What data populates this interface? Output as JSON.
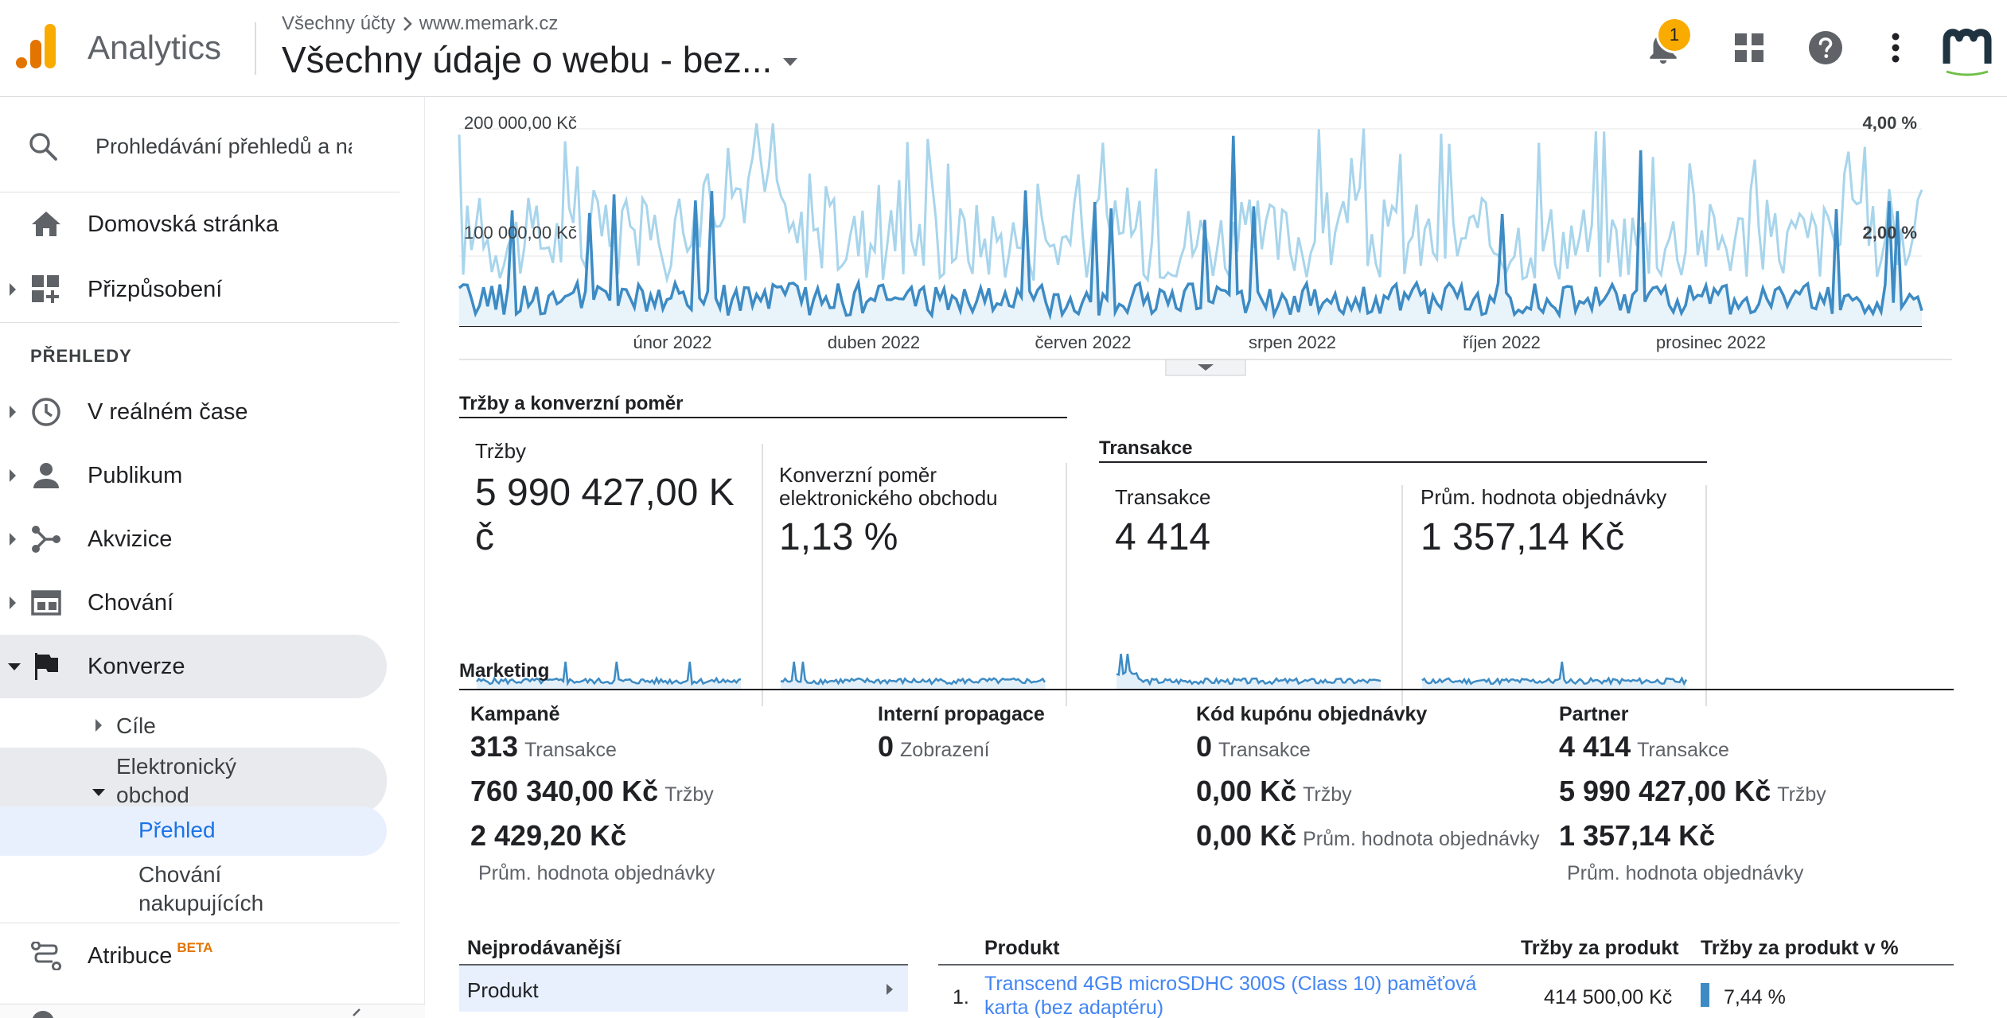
{
  "header": {
    "app_name": "Analytics",
    "breadcrumb_account": "Všechny účty",
    "breadcrumb_property": "www.memark.cz",
    "view_title": "Všechny údaje o webu - bez...",
    "notification_count": "1"
  },
  "sidebar": {
    "search_placeholder": "Prohledávání přehledů a náp",
    "home": "Domovská stránka",
    "customize": "Přizpůsobení",
    "section_reports": "PŘEHLEDY",
    "realtime": "V reálném čase",
    "audience": "Publikum",
    "acquisition": "Akvizice",
    "behavior": "Chování",
    "conversions": "Konverze",
    "goals": "Cíle",
    "ecommerce_line1": "Elektronický",
    "ecommerce_line2": "obchod",
    "overview": "Přehled",
    "shopping_line1": "Chování",
    "shopping_line2": "nakupujících",
    "attribution": "Atribuce",
    "beta": "BETA"
  },
  "chart": {
    "y_left_ticks": [
      "200 000,00 Kč",
      "100 000,00 Kč"
    ],
    "y_right_ticks": [
      "4,00 %",
      "2,00 %"
    ],
    "x_ticks": [
      "únor 2022",
      "duben 2022",
      "červen 2022",
      "srpen 2022",
      "říjen 2022",
      "prosinec 2022"
    ]
  },
  "revenue_section": {
    "title": "Tržby a konverzní poměr",
    "revenue_label": "Tržby",
    "revenue_value_l1": "5 990 427,00 K",
    "revenue_value_l2": "č",
    "conv_label_l1": "Konverzní poměr",
    "conv_label_l2": "elektronického obchodu",
    "conv_value": "1,13 %"
  },
  "transactions_section": {
    "title": "Transakce",
    "tx_label": "Transakce",
    "tx_value": "4 414",
    "aov_label": "Prům. hodnota objednávky",
    "aov_value": "1 357,14 Kč"
  },
  "marketing": {
    "title": "Marketing",
    "campaigns": {
      "head": "Kampaně",
      "tx": "313",
      "tx_unit": "Transakce",
      "rev": "760 340,00 Kč",
      "rev_unit": "Tržby",
      "aov": "2 429,20 Kč",
      "aov_unit": "Prům. hodnota objednávky"
    },
    "internal": {
      "head": "Interní propagace",
      "views": "0",
      "views_unit": "Zobrazení"
    },
    "coupon": {
      "head": "Kód kupónu objednávky",
      "tx": "0",
      "tx_unit": "Transakce",
      "rev": "0,00 Kč",
      "rev_unit": "Tržby",
      "aov": "0,00 Kč",
      "aov_unit": "Prům. hodnota objednávky"
    },
    "affiliate": {
      "head": "Partner",
      "tx": "4 414",
      "tx_unit": "Transakce",
      "rev": "5 990 427,00 Kč",
      "rev_unit": "Tržby",
      "aov": "1 357,14 Kč",
      "aov_unit": "Prům. hodnota objednávky"
    }
  },
  "top_sellers": {
    "title": "Nejprodávanější",
    "dimension": "Produkt",
    "col_product": "Produkt",
    "col_revenue": "Tržby za produkt",
    "col_revenue_pct": "Tržby za produkt v %",
    "rows": [
      {
        "rank": "1.",
        "name_l1": "Transcend 4GB microSDHC 300S (Class 10) paměťová",
        "name_l2": "karta (bez adaptéru)",
        "revenue": "414 500,00 Kč",
        "pct": "7,44 %",
        "pct_value": 7.44
      }
    ]
  },
  "colors": {
    "primary_series": "#3d8bc4",
    "secondary_series": "#a8d5ec",
    "link": "#4285f4",
    "selected_nav": "#e8f0fe",
    "active_nav": "#e8eaed",
    "badge": "#f9ab00"
  }
}
